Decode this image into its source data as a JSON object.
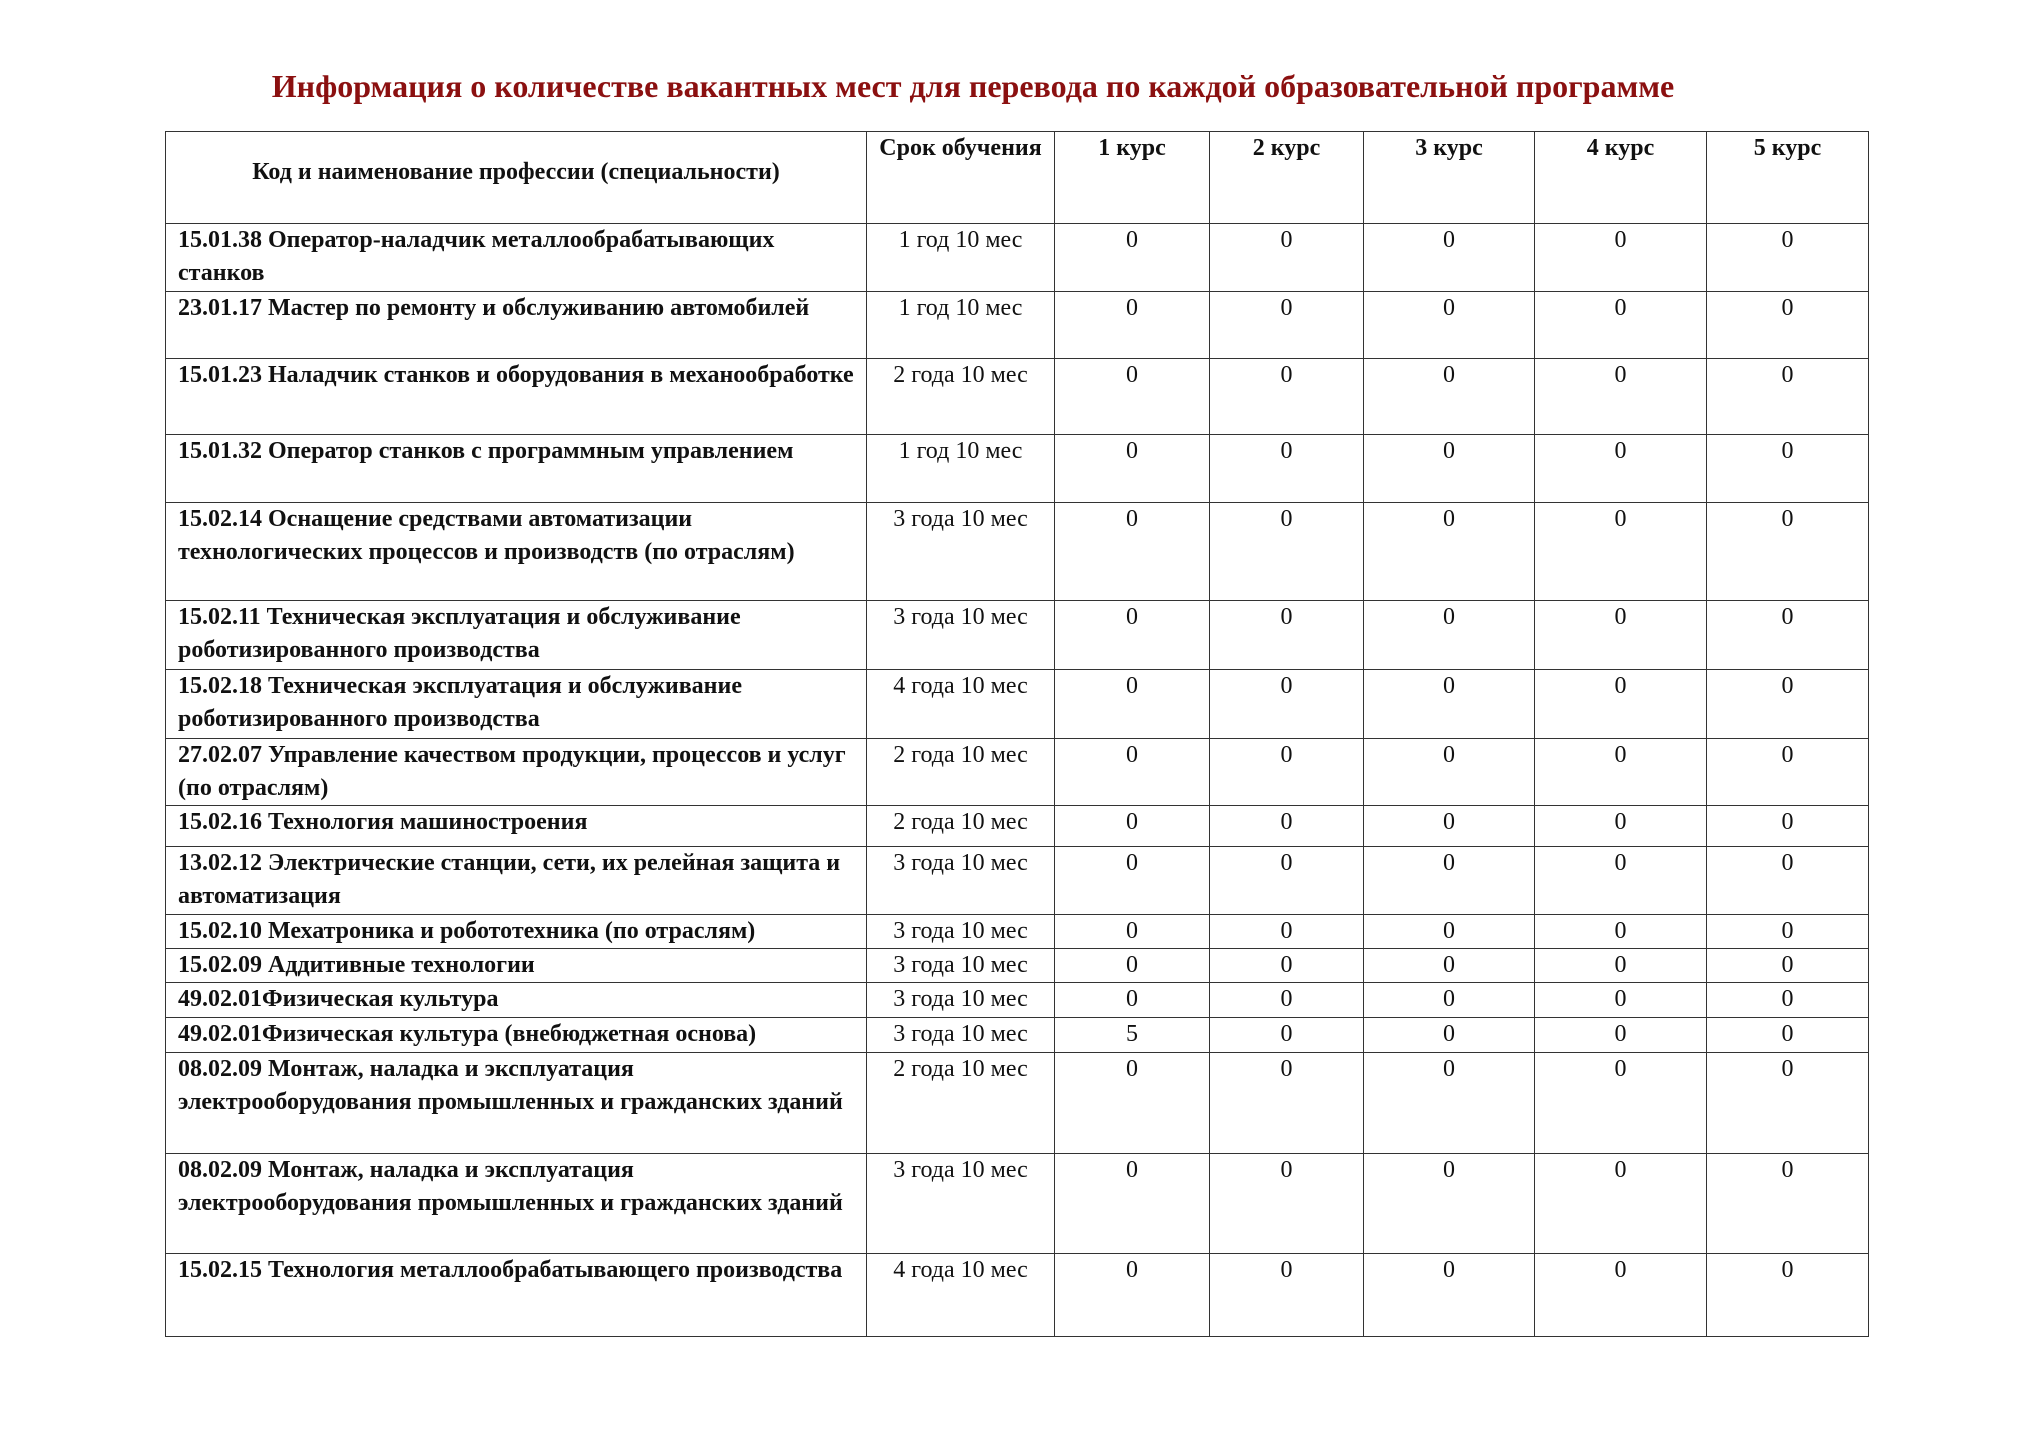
{
  "title": "Информация о количестве вакантных мест для перевода по каждой образовательной программе",
  "colors": {
    "title": "#8b1010",
    "border": "#333333"
  },
  "table": {
    "headers": [
      "Код и наименование профессии (специальности)",
      "Срок обучения",
      "1 курс",
      "2 курс",
      "3 курс",
      "4 курс",
      "5 курс"
    ],
    "rows": [
      {
        "name": "15.01.38 Оператор-наладчик металлообрабатывающих станков",
        "term": "1 год 10 мес",
        "values": [
          "0",
          "0",
          "0",
          "0",
          "0"
        ]
      },
      {
        "name": "23.01.17 Мастер по ремонту и обслуживанию автомобилей",
        "term": "1 год 10 мес",
        "values": [
          "0",
          "0",
          "0",
          "0",
          "0"
        ]
      },
      {
        "name": "15.01.23 Наладчик станков и оборудования в механообработке",
        "term": "2 года 10 мес",
        "values": [
          "0",
          "0",
          "0",
          "0",
          "0"
        ]
      },
      {
        "name": "15.01.32 Оператор станков с программным управлением",
        "term": "1 год 10 мес",
        "values": [
          "0",
          "0",
          "0",
          "0",
          "0"
        ]
      },
      {
        "name": "15.02.14 Оснащение средствами автоматизации технологических процессов и производств (по отраслям)",
        "term": "3 года 10 мес",
        "values": [
          "0",
          "0",
          "0",
          "0",
          "0"
        ]
      },
      {
        "name": "15.02.11 Техническая эксплуатация и обслуживание роботизированного производства",
        "term": "3 года 10 мес",
        "values": [
          "0",
          "0",
          "0",
          "0",
          "0"
        ]
      },
      {
        "name": "15.02.18 Техническая эксплуатация и обслуживание роботизированного производства",
        "term": "4 года 10 мес",
        "values": [
          "0",
          "0",
          "0",
          "0",
          "0"
        ]
      },
      {
        "name": "27.02.07 Управление качеством продукции, процессов и услуг (по отраслям)",
        "term": "2 года 10 мес",
        "values": [
          "0",
          "0",
          "0",
          "0",
          "0"
        ]
      },
      {
        "name": "15.02.16 Технология машиностроения",
        "term": "2 года 10 мес",
        "values": [
          "0",
          "0",
          "0",
          "0",
          "0"
        ]
      },
      {
        "name": "13.02.12 Электрические станции, сети, их релейная защита и автоматизация",
        "term": "3 года 10 мес",
        "values": [
          "0",
          "0",
          "0",
          "0",
          "0"
        ]
      },
      {
        "name": "15.02.10 Мехатроника и робототехника (по отраслям)",
        "term": "3 года 10 мес",
        "values": [
          "0",
          "0",
          "0",
          "0",
          "0"
        ]
      },
      {
        "name": "15.02.09 Аддитивные технологии",
        "term": "3 года 10 мес",
        "values": [
          "0",
          "0",
          "0",
          "0",
          "0"
        ]
      },
      {
        "name": "49.02.01Физическая культура",
        "term": "3 года 10 мес",
        "values": [
          "0",
          "0",
          "0",
          "0",
          "0"
        ]
      },
      {
        "name": "49.02.01Физическая культура (внебюджетная основа)",
        "term": "3 года 10 мес",
        "values": [
          "5",
          "0",
          "0",
          "0",
          "0"
        ]
      },
      {
        "name": "08.02.09 Монтаж, наладка и эксплуатация электрооборудования промышленных и гражданских зданий",
        "term": "2 года 10 мес",
        "values": [
          "0",
          "0",
          "0",
          "0",
          "0"
        ]
      },
      {
        "name": "08.02.09 Монтаж, наладка и эксплуатация электрооборудования промышленных и гражданских зданий",
        "term": "3 года 10 мес",
        "values": [
          "0",
          "0",
          "0",
          "0",
          "0"
        ]
      },
      {
        "name": "15.02.15 Технология металлообрабатывающего производства",
        "term": "4 года 10 мес",
        "values": [
          "0",
          "0",
          "0",
          "0",
          "0"
        ]
      }
    ]
  }
}
